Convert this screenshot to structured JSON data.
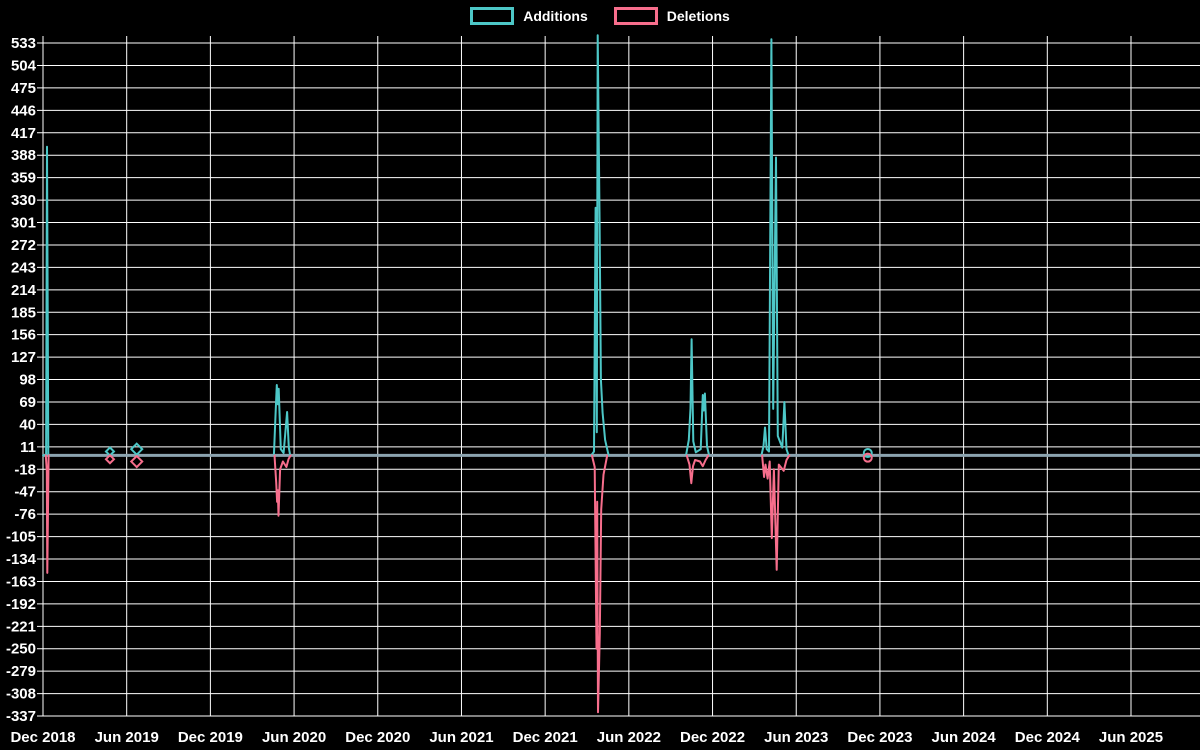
{
  "legend": {
    "items": [
      {
        "label": "Additions",
        "color": "#4dc7c7"
      },
      {
        "label": "Deletions",
        "color": "#f76e8c"
      }
    ]
  },
  "colors": {
    "background": "#000000",
    "grid": "#ffffff",
    "text": "#ffffff",
    "zero_line": "#8ba3af",
    "additions": "#4dc7c7",
    "deletions": "#f76e8c"
  },
  "chart_data": {
    "type": "line",
    "title": "",
    "xlabel": "",
    "ylabel": "",
    "legend_position": "top-center",
    "grid": true,
    "x_unit": "months since Dec 2018 (6-month tick spacing)",
    "x_tick_labels": [
      "Dec 2018",
      "Jun 2019",
      "Dec 2019",
      "Jun 2020",
      "Dec 2020",
      "Jun 2021",
      "Dec 2021",
      "Jun 2022",
      "Dec 2022",
      "Jun 2023",
      "Dec 2023",
      "Jun 2024",
      "Dec 2024",
      "Jun 2025"
    ],
    "y_ticks": [
      533,
      504,
      475,
      446,
      417,
      388,
      359,
      330,
      301,
      272,
      243,
      214,
      185,
      156,
      127,
      98,
      69,
      40,
      11,
      -18,
      -47,
      -76,
      -105,
      -134,
      -163,
      -192,
      -221,
      -250,
      -279,
      -308,
      -337
    ],
    "ylim": [
      -337,
      533
    ],
    "xlim_months": [
      0,
      83
    ],
    "series": [
      {
        "name": "Additions",
        "color": "#4dc7c7",
        "segments": [
          [
            [
              0,
              0
            ],
            [
              0.22,
              0
            ],
            [
              0.29,
              399
            ],
            [
              0.38,
              0
            ]
          ],
          [
            [
              16.55,
              0
            ],
            [
              16.68,
              58
            ],
            [
              16.76,
              91
            ],
            [
              16.84,
              66
            ],
            [
              16.9,
              86
            ],
            [
              17.05,
              8
            ],
            [
              17.25,
              3
            ],
            [
              17.5,
              56
            ],
            [
              17.62,
              10
            ],
            [
              17.72,
              0
            ]
          ],
          [
            [
              39.3,
              0
            ],
            [
              39.5,
              5
            ],
            [
              39.62,
              320
            ],
            [
              39.7,
              30
            ],
            [
              39.77,
              543
            ],
            [
              39.9,
              300
            ],
            [
              40.0,
              98
            ],
            [
              40.12,
              55
            ],
            [
              40.3,
              20
            ],
            [
              40.55,
              0
            ]
          ],
          [
            [
              46.1,
              0
            ],
            [
              46.3,
              20
            ],
            [
              46.42,
              61
            ],
            [
              46.5,
              150
            ],
            [
              46.62,
              18
            ],
            [
              46.8,
              4
            ],
            [
              47.15,
              8
            ],
            [
              47.3,
              78
            ],
            [
              47.38,
              58
            ],
            [
              47.45,
              80
            ],
            [
              47.6,
              12
            ],
            [
              47.75,
              0
            ]
          ],
          [
            [
              51.5,
              0
            ],
            [
              51.65,
              12
            ],
            [
              51.76,
              36
            ],
            [
              51.88,
              8
            ],
            [
              52.05,
              5
            ],
            [
              52.22,
              538
            ],
            [
              52.35,
              60
            ],
            [
              52.55,
              385
            ],
            [
              52.68,
              25
            ],
            [
              53.0,
              10
            ],
            [
              53.15,
              69
            ],
            [
              53.3,
              8
            ],
            [
              53.45,
              0
            ]
          ]
        ]
      },
      {
        "name": "Deletions",
        "color": "#f76e8c",
        "segments": [
          [
            [
              0.2,
              0
            ],
            [
              0.27,
              -20
            ],
            [
              0.31,
              -152
            ],
            [
              0.4,
              0
            ]
          ],
          [
            [
              16.6,
              0
            ],
            [
              16.72,
              -35
            ],
            [
              16.78,
              -60
            ],
            [
              16.83,
              -45
            ],
            [
              16.88,
              -78
            ],
            [
              17.0,
              -18
            ],
            [
              17.2,
              -8
            ],
            [
              17.45,
              -15
            ],
            [
              17.6,
              -5
            ],
            [
              17.75,
              0
            ]
          ],
          [
            [
              39.35,
              0
            ],
            [
              39.55,
              -15
            ],
            [
              39.68,
              -250
            ],
            [
              39.73,
              -60
            ],
            [
              39.79,
              -332
            ],
            [
              39.92,
              -230
            ],
            [
              40.02,
              -70
            ],
            [
              40.18,
              -25
            ],
            [
              40.45,
              0
            ]
          ],
          [
            [
              46.15,
              0
            ],
            [
              46.35,
              -12
            ],
            [
              46.48,
              -36
            ],
            [
              46.6,
              -14
            ],
            [
              46.75,
              -6
            ],
            [
              47.1,
              -8
            ],
            [
              47.3,
              -14
            ],
            [
              47.5,
              -6
            ],
            [
              47.7,
              0
            ]
          ],
          [
            [
              51.55,
              0
            ],
            [
              51.7,
              -28
            ],
            [
              51.8,
              -12
            ],
            [
              51.95,
              -30
            ],
            [
              52.1,
              -8
            ],
            [
              52.25,
              -107
            ],
            [
              52.4,
              -18
            ],
            [
              52.6,
              -148
            ],
            [
              52.75,
              -12
            ],
            [
              53.1,
              -20
            ],
            [
              53.3,
              -6
            ],
            [
              53.5,
              0
            ]
          ]
        ]
      }
    ],
    "isolated_point_markers": [
      {
        "x_months": 4.8,
        "additions": 5,
        "deletions": -5,
        "shape": "diamond",
        "size": 4
      },
      {
        "x_months": 6.72,
        "additions": 8,
        "deletions": -8,
        "shape": "diamond",
        "size": 5.5
      },
      {
        "x_months": 59.13,
        "additions": 3,
        "deletions": -3,
        "shape": "circle",
        "size": 4
      }
    ],
    "zero_baseline": {
      "value": 0,
      "color": "#8ba3af",
      "width": 3
    }
  }
}
